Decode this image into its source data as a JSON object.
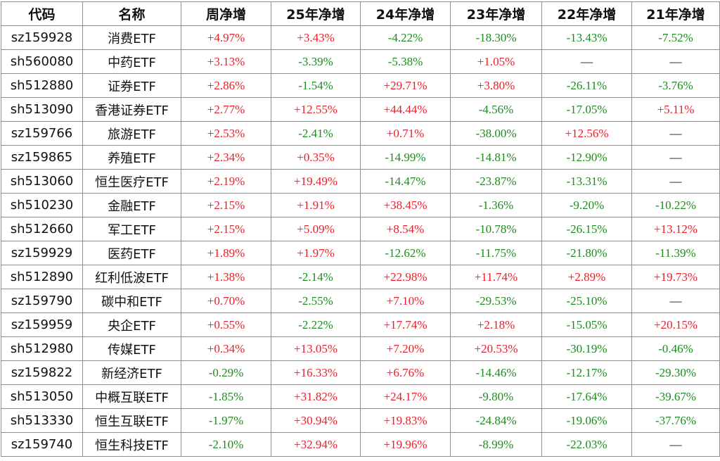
{
  "table": {
    "headers": [
      "代码",
      "名称",
      "周净增",
      "25年净增",
      "24年净增",
      "23年净增",
      "22年净增",
      "21年净增"
    ],
    "rows": [
      [
        "sz159928",
        "消费ETF",
        "+4.97%",
        "+3.43%",
        "-4.22%",
        "-18.30%",
        "-13.43%",
        "-7.52%"
      ],
      [
        "sh560080",
        "中药ETF",
        "+3.13%",
        "-3.39%",
        "-5.38%",
        "+1.05%",
        "—",
        "—"
      ],
      [
        "sh512880",
        "证券ETF",
        "+2.86%",
        "-1.54%",
        "+29.71%",
        "+3.80%",
        "-26.11%",
        "-3.76%"
      ],
      [
        "sh513090",
        "香港证券ETF",
        "+2.77%",
        "+12.55%",
        "+44.44%",
        "-4.56%",
        "-17.05%",
        "+5.11%"
      ],
      [
        "sz159766",
        "旅游ETF",
        "+2.53%",
        "-2.41%",
        "+0.71%",
        "-38.00%",
        "+12.56%",
        "—"
      ],
      [
        "sz159865",
        "养殖ETF",
        "+2.34%",
        "+0.35%",
        "-14.99%",
        "-14.81%",
        "-12.90%",
        "—"
      ],
      [
        "sh513060",
        "恒生医疗ETF",
        "+2.19%",
        "+19.49%",
        "-14.47%",
        "-23.87%",
        "-13.31%",
        "—"
      ],
      [
        "sh510230",
        "金融ETF",
        "+2.15%",
        "+1.91%",
        "+38.45%",
        "-1.36%",
        "-9.20%",
        "-10.22%"
      ],
      [
        "sh512660",
        "军工ETF",
        "+2.15%",
        "+5.09%",
        "+8.54%",
        "-10.78%",
        "-26.15%",
        "+13.12%"
      ],
      [
        "sz159929",
        "医药ETF",
        "+1.89%",
        "+1.97%",
        "-12.62%",
        "-11.75%",
        "-21.80%",
        "-11.39%"
      ],
      [
        "sh512890",
        "红利低波ETF",
        "+1.38%",
        "-2.14%",
        "+22.98%",
        "+11.74%",
        "+2.89%",
        "+19.73%"
      ],
      [
        "sz159790",
        "碳中和ETF",
        "+0.70%",
        "-2.55%",
        "+7.10%",
        "-29.53%",
        "-25.10%",
        "—"
      ],
      [
        "sz159959",
        "央企ETF",
        "+0.55%",
        "-2.22%",
        "+17.74%",
        "+2.18%",
        "-15.05%",
        "+20.15%"
      ],
      [
        "sh512980",
        "传媒ETF",
        "+0.34%",
        "+13.05%",
        "+7.20%",
        "+20.53%",
        "-30.19%",
        "-0.46%"
      ],
      [
        "sz159822",
        "新经济ETF",
        "-0.29%",
        "+16.33%",
        "+6.76%",
        "-14.46%",
        "-12.17%",
        "-29.30%"
      ],
      [
        "sh513050",
        "中概互联ETF",
        "-1.85%",
        "+31.82%",
        "+24.17%",
        "-9.80%",
        "-17.64%",
        "-39.67%"
      ],
      [
        "sh513330",
        "恒生互联ETF",
        "-1.97%",
        "+30.94%",
        "+19.83%",
        "-24.84%",
        "-19.06%",
        "-37.76%"
      ],
      [
        "sz159740",
        "恒生科技ETF",
        "-2.10%",
        "+32.94%",
        "+19.96%",
        "-8.99%",
        "-22.03%",
        "—"
      ]
    ]
  }
}
